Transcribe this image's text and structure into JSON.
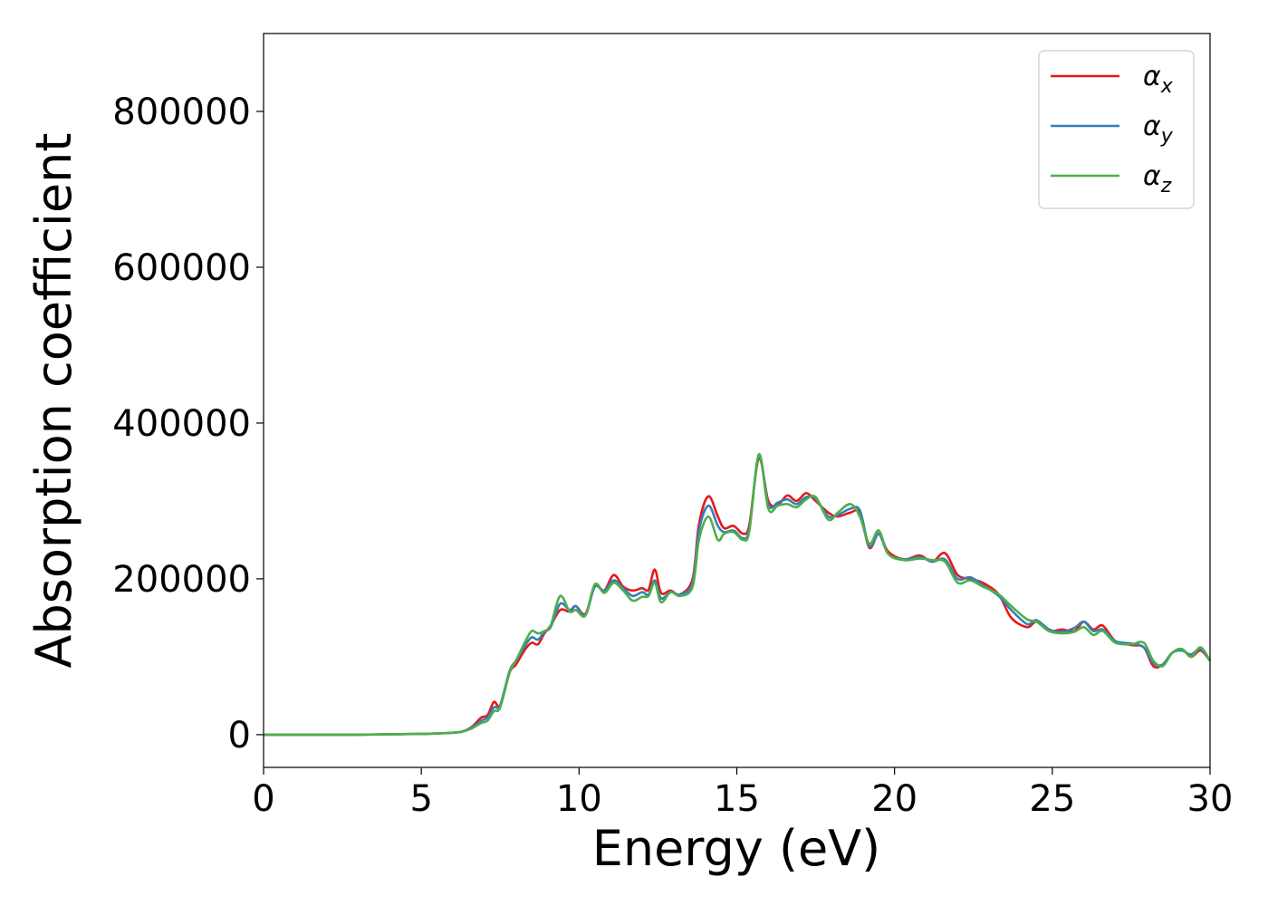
{
  "chart_data": {
    "type": "line",
    "xlabel": "Energy (eV)",
    "ylabel": "Absorption coefficient",
    "xlim": [
      0,
      30
    ],
    "ylim": [
      -42000,
      900000
    ],
    "xticks": [
      0,
      5,
      10,
      15,
      20,
      25,
      30
    ],
    "yticks": [
      0,
      200000,
      400000,
      600000,
      800000
    ],
    "legend_position": "top-right",
    "grid": false,
    "series": [
      {
        "name": "αx",
        "symbol": "α",
        "subscript": "x",
        "color": "#e41a1c",
        "points": [
          [
            0,
            0
          ],
          [
            1,
            0
          ],
          [
            2,
            0
          ],
          [
            3,
            0
          ],
          [
            4,
            500
          ],
          [
            5,
            1000
          ],
          [
            5.5,
            1500
          ],
          [
            6,
            2500
          ],
          [
            6.3,
            4000
          ],
          [
            6.6,
            10000
          ],
          [
            6.9,
            22000
          ],
          [
            7.1,
            25000
          ],
          [
            7.3,
            42000
          ],
          [
            7.5,
            38000
          ],
          [
            7.8,
            80000
          ],
          [
            8.0,
            90000
          ],
          [
            8.3,
            110000
          ],
          [
            8.5,
            118000
          ],
          [
            8.7,
            116000
          ],
          [
            8.9,
            130000
          ],
          [
            9.1,
            140000
          ],
          [
            9.4,
            160000
          ],
          [
            9.7,
            158000
          ],
          [
            9.9,
            165000
          ],
          [
            10.2,
            155000
          ],
          [
            10.5,
            190000
          ],
          [
            10.8,
            185000
          ],
          [
            11.1,
            205000
          ],
          [
            11.4,
            190000
          ],
          [
            11.7,
            185000
          ],
          [
            12.0,
            188000
          ],
          [
            12.2,
            186000
          ],
          [
            12.4,
            212000
          ],
          [
            12.6,
            182000
          ],
          [
            12.9,
            185000
          ],
          [
            13.2,
            180000
          ],
          [
            13.6,
            200000
          ],
          [
            13.8,
            270000
          ],
          [
            14.1,
            306000
          ],
          [
            14.4,
            280000
          ],
          [
            14.6,
            265000
          ],
          [
            14.9,
            268000
          ],
          [
            15.2,
            258000
          ],
          [
            15.4,
            270000
          ],
          [
            15.7,
            355000
          ],
          [
            16.0,
            300000
          ],
          [
            16.3,
            295000
          ],
          [
            16.6,
            307000
          ],
          [
            16.9,
            300000
          ],
          [
            17.2,
            310000
          ],
          [
            17.5,
            300000
          ],
          [
            17.9,
            285000
          ],
          [
            18.2,
            280000
          ],
          [
            18.6,
            285000
          ],
          [
            18.9,
            285000
          ],
          [
            19.2,
            240000
          ],
          [
            19.5,
            258000
          ],
          [
            19.8,
            235000
          ],
          [
            20.3,
            225000
          ],
          [
            20.8,
            230000
          ],
          [
            21.2,
            222000
          ],
          [
            21.6,
            233000
          ],
          [
            22.0,
            205000
          ],
          [
            22.4,
            200000
          ],
          [
            22.8,
            195000
          ],
          [
            23.3,
            180000
          ],
          [
            23.7,
            150000
          ],
          [
            24.2,
            138000
          ],
          [
            24.5,
            145000
          ],
          [
            24.9,
            133000
          ],
          [
            25.3,
            135000
          ],
          [
            25.7,
            133000
          ],
          [
            26.0,
            145000
          ],
          [
            26.3,
            135000
          ],
          [
            26.6,
            140000
          ],
          [
            27.0,
            120000
          ],
          [
            27.5,
            115000
          ],
          [
            27.9,
            112000
          ],
          [
            28.2,
            88000
          ],
          [
            28.5,
            90000
          ],
          [
            28.8,
            105000
          ],
          [
            29.1,
            110000
          ],
          [
            29.4,
            100000
          ],
          [
            29.7,
            108000
          ],
          [
            30,
            95000
          ]
        ]
      },
      {
        "name": "αy",
        "symbol": "α",
        "subscript": "y",
        "color": "#377eb8",
        "points": [
          [
            0,
            0
          ],
          [
            1,
            0
          ],
          [
            2,
            0
          ],
          [
            3,
            0
          ],
          [
            4,
            500
          ],
          [
            5,
            1000
          ],
          [
            5.5,
            1500
          ],
          [
            6,
            2500
          ],
          [
            6.3,
            4000
          ],
          [
            6.6,
            9000
          ],
          [
            6.9,
            18000
          ],
          [
            7.1,
            22000
          ],
          [
            7.3,
            35000
          ],
          [
            7.5,
            38000
          ],
          [
            7.8,
            82000
          ],
          [
            8.0,
            95000
          ],
          [
            8.3,
            115000
          ],
          [
            8.5,
            125000
          ],
          [
            8.7,
            122000
          ],
          [
            8.9,
            132000
          ],
          [
            9.1,
            138000
          ],
          [
            9.4,
            168000
          ],
          [
            9.7,
            160000
          ],
          [
            9.9,
            165000
          ],
          [
            10.2,
            153000
          ],
          [
            10.5,
            190000
          ],
          [
            10.8,
            185000
          ],
          [
            11.1,
            198000
          ],
          [
            11.4,
            188000
          ],
          [
            11.7,
            178000
          ],
          [
            12.0,
            183000
          ],
          [
            12.2,
            180000
          ],
          [
            12.4,
            198000
          ],
          [
            12.6,
            175000
          ],
          [
            12.9,
            183000
          ],
          [
            13.2,
            180000
          ],
          [
            13.6,
            195000
          ],
          [
            13.8,
            262000
          ],
          [
            14.1,
            294000
          ],
          [
            14.4,
            268000
          ],
          [
            14.6,
            260000
          ],
          [
            14.9,
            262000
          ],
          [
            15.2,
            252000
          ],
          [
            15.4,
            265000
          ],
          [
            15.7,
            358000
          ],
          [
            16.0,
            295000
          ],
          [
            16.3,
            298000
          ],
          [
            16.6,
            302000
          ],
          [
            16.9,
            296000
          ],
          [
            17.2,
            305000
          ],
          [
            17.5,
            303000
          ],
          [
            17.9,
            280000
          ],
          [
            18.2,
            282000
          ],
          [
            18.6,
            290000
          ],
          [
            18.9,
            288000
          ],
          [
            19.2,
            242000
          ],
          [
            19.5,
            258000
          ],
          [
            19.8,
            232000
          ],
          [
            20.3,
            225000
          ],
          [
            20.8,
            228000
          ],
          [
            21.2,
            222000
          ],
          [
            21.6,
            225000
          ],
          [
            22.0,
            200000
          ],
          [
            22.4,
            202000
          ],
          [
            22.8,
            192000
          ],
          [
            23.3,
            178000
          ],
          [
            23.7,
            160000
          ],
          [
            24.2,
            142000
          ],
          [
            24.5,
            147000
          ],
          [
            24.9,
            135000
          ],
          [
            25.3,
            132000
          ],
          [
            25.7,
            137000
          ],
          [
            26.0,
            145000
          ],
          [
            26.3,
            133000
          ],
          [
            26.6,
            135000
          ],
          [
            27.0,
            120000
          ],
          [
            27.5,
            117000
          ],
          [
            27.9,
            112000
          ],
          [
            28.2,
            92000
          ],
          [
            28.5,
            90000
          ],
          [
            28.8,
            105000
          ],
          [
            29.1,
            108000
          ],
          [
            29.4,
            103000
          ],
          [
            29.7,
            110000
          ],
          [
            30,
            95000
          ]
        ]
      },
      {
        "name": "αz",
        "symbol": "α",
        "subscript": "z",
        "color": "#4daf4a",
        "points": [
          [
            0,
            0
          ],
          [
            1,
            0
          ],
          [
            2,
            0
          ],
          [
            3,
            0
          ],
          [
            4,
            500
          ],
          [
            5,
            1000
          ],
          [
            5.5,
            1500
          ],
          [
            6,
            2500
          ],
          [
            6.3,
            4000
          ],
          [
            6.6,
            8000
          ],
          [
            6.9,
            15000
          ],
          [
            7.1,
            18000
          ],
          [
            7.3,
            30000
          ],
          [
            7.5,
            35000
          ],
          [
            7.8,
            80000
          ],
          [
            8.0,
            95000
          ],
          [
            8.3,
            120000
          ],
          [
            8.5,
            133000
          ],
          [
            8.7,
            130000
          ],
          [
            8.9,
            133000
          ],
          [
            9.1,
            140000
          ],
          [
            9.4,
            178000
          ],
          [
            9.7,
            158000
          ],
          [
            9.9,
            160000
          ],
          [
            10.2,
            153000
          ],
          [
            10.5,
            193000
          ],
          [
            10.8,
            182000
          ],
          [
            11.1,
            195000
          ],
          [
            11.4,
            185000
          ],
          [
            11.7,
            172000
          ],
          [
            12.0,
            177000
          ],
          [
            12.2,
            178000
          ],
          [
            12.4,
            195000
          ],
          [
            12.6,
            170000
          ],
          [
            12.9,
            183000
          ],
          [
            13.2,
            178000
          ],
          [
            13.6,
            190000
          ],
          [
            13.8,
            250000
          ],
          [
            14.1,
            280000
          ],
          [
            14.4,
            250000
          ],
          [
            14.6,
            258000
          ],
          [
            14.9,
            260000
          ],
          [
            15.2,
            250000
          ],
          [
            15.4,
            262000
          ],
          [
            15.7,
            360000
          ],
          [
            16.0,
            290000
          ],
          [
            16.3,
            294000
          ],
          [
            16.6,
            296000
          ],
          [
            16.9,
            292000
          ],
          [
            17.2,
            302000
          ],
          [
            17.5,
            305000
          ],
          [
            17.9,
            276000
          ],
          [
            18.2,
            285000
          ],
          [
            18.6,
            296000
          ],
          [
            18.9,
            280000
          ],
          [
            19.2,
            245000
          ],
          [
            19.5,
            262000
          ],
          [
            19.8,
            232000
          ],
          [
            20.3,
            224000
          ],
          [
            20.8,
            226000
          ],
          [
            21.2,
            224000
          ],
          [
            21.6,
            222000
          ],
          [
            22.0,
            195000
          ],
          [
            22.4,
            198000
          ],
          [
            22.8,
            190000
          ],
          [
            23.3,
            180000
          ],
          [
            23.7,
            165000
          ],
          [
            24.2,
            148000
          ],
          [
            24.5,
            145000
          ],
          [
            24.9,
            133000
          ],
          [
            25.3,
            130000
          ],
          [
            25.7,
            132000
          ],
          [
            26.0,
            138000
          ],
          [
            26.3,
            128000
          ],
          [
            26.6,
            133000
          ],
          [
            27.0,
            118000
          ],
          [
            27.5,
            116000
          ],
          [
            27.9,
            118000
          ],
          [
            28.2,
            95000
          ],
          [
            28.5,
            88000
          ],
          [
            28.8,
            105000
          ],
          [
            29.1,
            110000
          ],
          [
            29.4,
            100000
          ],
          [
            29.7,
            112000
          ],
          [
            30,
            95000
          ]
        ]
      }
    ]
  }
}
